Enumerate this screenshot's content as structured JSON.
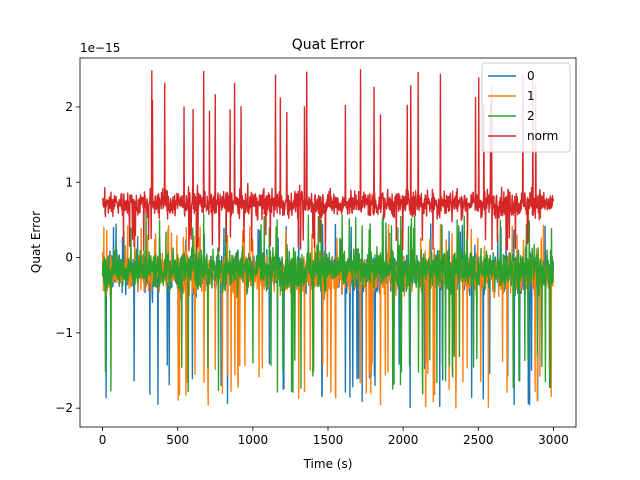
{
  "chart_data": {
    "type": "line",
    "title": "Quat Error",
    "xlabel": "Time (s)",
    "ylabel": "Quat Error",
    "offset_label": "1e−15",
    "x_range": [
      0,
      3000
    ],
    "xlim": [
      -150,
      3150
    ],
    "ylim": [
      -2.25,
      2.65
    ],
    "x_ticks": [
      0,
      500,
      1000,
      1500,
      2000,
      2500,
      3000
    ],
    "x_tick_labels": [
      "0",
      "500",
      "1000",
      "1500",
      "2000",
      "2500",
      "3000"
    ],
    "y_ticks": [
      -2,
      -1,
      0,
      1,
      2
    ],
    "y_tick_labels": [
      "−2",
      "−1",
      "0",
      "1",
      "2"
    ],
    "grid": false,
    "legend_position": "top-right",
    "series": [
      {
        "name": "0",
        "color": "#1f77b4",
        "center": -0.2,
        "spread": 0.45,
        "spike_min": -2.02,
        "spike_max": 0.45
      },
      {
        "name": "1",
        "color": "#ff7f0e",
        "center": -0.22,
        "spread": 0.45,
        "spike_min": -2.0,
        "spike_max": 0.45
      },
      {
        "name": "2",
        "color": "#2ca02c",
        "center": -0.15,
        "spread": 0.48,
        "spike_min": -1.85,
        "spike_max": 0.6
      },
      {
        "name": "norm",
        "color": "#d62728",
        "center": 0.72,
        "spread": 0.32,
        "spike_min": 0.08,
        "spike_max": 2.52
      }
    ]
  }
}
